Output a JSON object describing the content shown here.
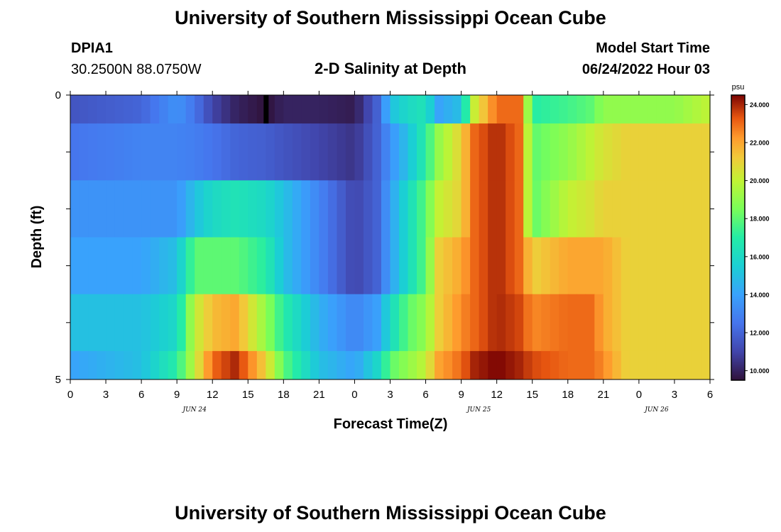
{
  "page": {
    "title": "University of Southern Mississippi Ocean Cube",
    "footer_title": "University of Southern Mississippi Ocean Cube",
    "station_id": "DPIA1",
    "station_coords": "30.2500N  88.0750W",
    "chart_title": "2-D Salinity at Depth",
    "model_start_label": "Model Start Time",
    "model_start_value": "06/24/2022 Hour 03"
  },
  "chart_data": {
    "type": "heatmap",
    "title": "2-D Salinity at Depth",
    "xlabel": "Forecast Time(Z)",
    "ylabel": "Depth (ft)",
    "x_tick_labels": [
      "0",
      "3",
      "6",
      "9",
      "12",
      "15",
      "18",
      "21",
      "0",
      "3",
      "6",
      "9",
      "12",
      "15",
      "18",
      "21",
      "0",
      "3",
      "6"
    ],
    "x_date_labels": [
      "JUN 24",
      "JUN 25",
      "JUN 26"
    ],
    "y_tick_labels": [
      "0",
      "5"
    ],
    "ylim": [
      0,
      5
    ],
    "colorbar": {
      "unit": "psu",
      "min": 9.5,
      "max": 24.5,
      "tick_labels": [
        "24.000",
        "22.000",
        "20.000",
        "18.000",
        "16.000",
        "14.000",
        "12.000",
        "10.000"
      ],
      "tick_values": [
        24,
        22,
        20,
        18,
        16,
        14,
        12,
        10
      ]
    },
    "time_hours": [
      0,
      6,
      9,
      10.5,
      12,
      14,
      16.5,
      18,
      21,
      24,
      26,
      27,
      28.5,
      30,
      31,
      33,
      34,
      36,
      38,
      39,
      42,
      44,
      45,
      47,
      48,
      51,
      54
    ],
    "rows": [
      {
        "depth_range": [
          0,
          0.5
        ],
        "values": [
          11.5,
          12,
          13.5,
          12.5,
          11,
          10,
          9.5,
          10,
          10,
          9.8,
          12,
          15,
          16,
          16.5,
          14,
          15,
          20,
          23,
          23,
          17,
          17.5,
          18,
          19,
          19,
          19,
          19,
          20
        ]
      },
      {
        "depth_range": [
          0.5,
          1.5
        ],
        "values": [
          12.5,
          13,
          13,
          12.8,
          12.5,
          12,
          11.8,
          11.5,
          11,
          10.5,
          12,
          13.5,
          15,
          17,
          19,
          21,
          23,
          24,
          23,
          18,
          19,
          20,
          20.5,
          21,
          21,
          21,
          21
        ]
      },
      {
        "depth_range": [
          1.5,
          2.5
        ],
        "values": [
          13.5,
          13.5,
          13.5,
          15,
          16,
          16.5,
          16,
          15,
          13,
          11,
          12,
          14,
          16,
          18,
          20,
          21,
          23,
          24,
          23,
          18,
          20,
          20.5,
          21,
          21,
          21,
          21,
          21
        ]
      },
      {
        "depth_range": [
          2.5,
          3.5
        ],
        "values": [
          14,
          14,
          15,
          18,
          18,
          18,
          17,
          15,
          13,
          11,
          12,
          14,
          16,
          18,
          21,
          22,
          23,
          24,
          23,
          21,
          22,
          22,
          22,
          21,
          21,
          21,
          21
        ]
      },
      {
        "depth_range": [
          3.5,
          4.5
        ],
        "values": [
          15,
          15,
          16,
          20,
          21.5,
          22,
          19,
          17,
          14.5,
          13,
          14,
          16,
          18,
          19,
          21,
          22.5,
          23,
          24,
          23.5,
          22.5,
          23,
          23,
          22,
          21,
          21,
          21,
          21
        ]
      },
      {
        "depth_range": [
          4.5,
          5
        ],
        "values": [
          14,
          15,
          17,
          20,
          23,
          24,
          21,
          18,
          15,
          14,
          16,
          18,
          19,
          20,
          22,
          23,
          24,
          24.5,
          24,
          23.5,
          23,
          23,
          22.5,
          21,
          21,
          21,
          21
        ]
      }
    ],
    "missing_data": {
      "x_hour": 16.5,
      "depth_range": [
        0,
        0.5
      ],
      "color": "#000000"
    }
  }
}
